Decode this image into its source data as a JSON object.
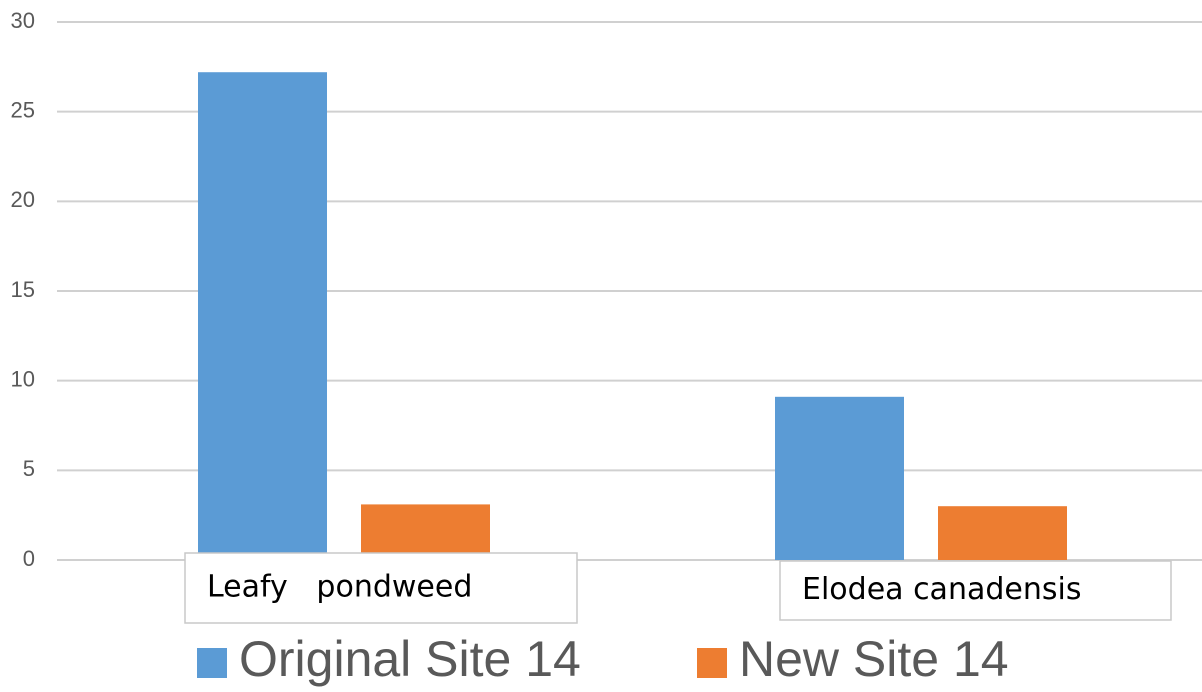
{
  "chart_data": {
    "type": "bar",
    "categories": [
      "Leafy   pondweed",
      "Elodea canadensis"
    ],
    "series": [
      {
        "name": "Original Site 14",
        "color": "#5b9bd5",
        "values": [
          27.2,
          9.1
        ]
      },
      {
        "name": "New Site 14",
        "color": "#ed7d31",
        "values": [
          3.1,
          3.0
        ]
      }
    ],
    "ylim": [
      0,
      30
    ],
    "yticks": [
      0,
      5,
      10,
      15,
      20,
      25,
      30
    ],
    "grid": true,
    "legend": "bottom"
  }
}
